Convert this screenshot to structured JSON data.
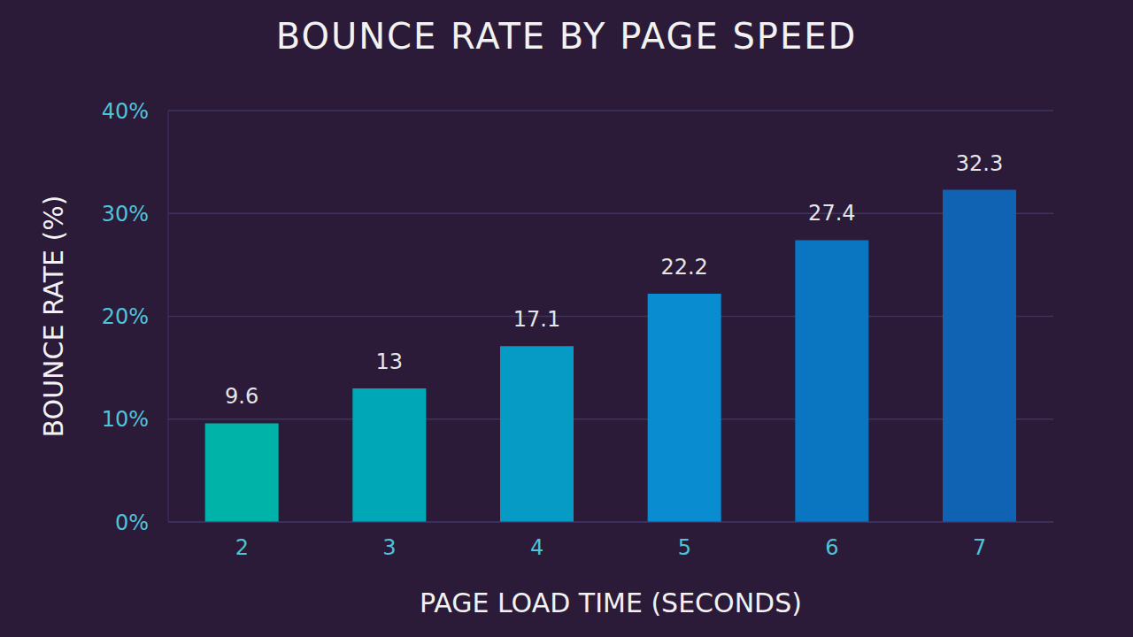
{
  "chart_data": {
    "type": "bar",
    "title": "BOUNCE RATE BY PAGE SPEED",
    "x_label": "PAGE LOAD TIME (SECONDS)",
    "y_label": "BOUNCE RATE (%)",
    "categories": [
      "2",
      "3",
      "4",
      "5",
      "6",
      "7"
    ],
    "values": [
      9.6,
      13,
      17.1,
      22.2,
      27.4,
      32.3
    ],
    "colors": [
      "#00b3a8",
      "#00a7b6",
      "#069bc4",
      "#0a8dd0",
      "#0a76c2",
      "#1062b2"
    ],
    "ylim": [
      0,
      40
    ],
    "yticks": [
      {
        "value": 0,
        "label": "0%"
      },
      {
        "value": 10,
        "label": "10%"
      },
      {
        "value": 20,
        "label": "20%"
      },
      {
        "value": 30,
        "label": "30%"
      },
      {
        "value": 40,
        "label": "40%"
      }
    ],
    "grid": true,
    "data_labels": true
  }
}
